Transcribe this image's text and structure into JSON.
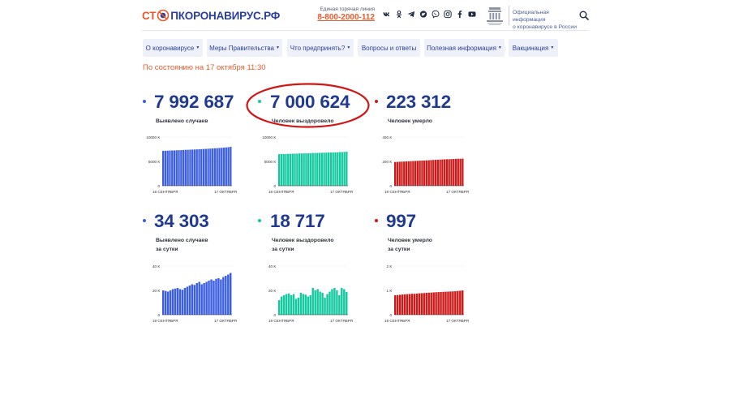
{
  "header": {
    "logo": {
      "part1": "СТ",
      "part2": "ПКОРОНАВИРУС.РФ"
    },
    "hotline_label": "Единая горячая линия",
    "hotline_number": "8-800-2000-112",
    "socials": [
      "vk-icon",
      "odnoklassniki-icon",
      "telegram-icon",
      "twitter-icon",
      "viber-icon",
      "instagram-icon",
      "facebook-icon",
      "youtube-icon"
    ],
    "official_line1": "Официальная информация",
    "official_line2": "о коронавирусе в России"
  },
  "nav": [
    {
      "label": "О коронавирусе"
    },
    {
      "label": "Меры Правительства"
    },
    {
      "label": "Что предпринять?"
    },
    {
      "label": "Вопросы и ответы"
    },
    {
      "label": "Полезная информация"
    },
    {
      "label": "Вакцинация"
    }
  ],
  "status_text": "По состоянию на 17 октября 11:30",
  "stats": [
    {
      "value": "7 992 687",
      "caption1": "Выявлено случаев",
      "caption2": ""
    },
    {
      "value": "7 000 624",
      "caption1": "Человек выздоровело",
      "caption2": ""
    },
    {
      "value": "223 312",
      "caption1": "Человек умерло",
      "caption2": ""
    },
    {
      "value": "34 303",
      "caption1": "Выявлено случаев",
      "caption2": "за сутки"
    },
    {
      "value": "18 717",
      "caption1": "Человек выздоровело",
      "caption2": "за сутки"
    },
    {
      "value": "997",
      "caption1": "Человек умерло",
      "caption2": "за сутки"
    }
  ],
  "colors": {
    "cases": "#3b5fe0",
    "recovered": "#12c9a0",
    "deaths": "#cc1a1a",
    "accent": "#e85a2c",
    "navy": "#1f3a8f"
  },
  "chart_data": [
    {
      "type": "bar",
      "name": "cases_total",
      "color": "#3b5fe0",
      "ticks": [
        "0",
        "5000 К",
        "10000 К"
      ],
      "ylim": [
        0,
        10000
      ],
      "xstart": "18 СЕНТЯБРЯ",
      "xend": "17 ОКТЯБРЯ",
      "values": [
        7170,
        7190,
        7210,
        7230,
        7250,
        7270,
        7290,
        7310,
        7330,
        7350,
        7370,
        7390,
        7410,
        7430,
        7450,
        7480,
        7500,
        7530,
        7550,
        7580,
        7610,
        7640,
        7670,
        7700,
        7730,
        7760,
        7800,
        7840,
        7880,
        7920,
        7993
      ]
    },
    {
      "type": "bar",
      "name": "recovered_total",
      "color": "#12c9a0",
      "ticks": [
        "0",
        "5000 К",
        "10000 К"
      ],
      "ylim": [
        0,
        10000
      ],
      "xstart": "18 СЕНТЯБРЯ",
      "xend": "17 ОКТЯБРЯ",
      "values": [
        6490,
        6505,
        6520,
        6535,
        6550,
        6565,
        6580,
        6595,
        6610,
        6625,
        6640,
        6655,
        6670,
        6685,
        6700,
        6715,
        6730,
        6745,
        6760,
        6775,
        6790,
        6805,
        6820,
        6835,
        6850,
        6870,
        6890,
        6910,
        6930,
        6960,
        7001
      ]
    },
    {
      "type": "bar",
      "name": "deaths_total",
      "color": "#cc1a1a",
      "ticks": [
        "0",
        "200 К",
        "400 К"
      ],
      "ylim": [
        0,
        400
      ],
      "xstart": "18 СЕНТЯБРЯ",
      "xend": "17 ОКТЯБРЯ",
      "values": [
        195,
        196,
        197,
        198,
        199,
        200,
        201,
        202,
        203,
        204,
        205,
        206,
        207,
        208,
        209,
        210,
        211,
        212,
        213,
        214,
        215,
        216,
        217,
        218,
        218,
        219,
        220,
        221,
        222,
        222,
        223
      ]
    },
    {
      "type": "bar",
      "name": "cases_daily",
      "color": "#3b5fe0",
      "ticks": [
        "0",
        "20 К",
        "40 К"
      ],
      "ylim": [
        0,
        40
      ],
      "xstart": "19 СЕНТЯБРЯ",
      "xend": "17 ОКТЯБРЯ",
      "values": [
        20,
        19.5,
        19,
        20,
        21,
        21.5,
        22,
        21,
        20.5,
        22,
        23,
        24,
        25,
        24.5,
        26,
        27,
        25,
        26,
        27,
        28,
        29,
        28,
        29.5,
        30,
        29,
        31,
        32,
        33,
        34.3
      ]
    },
    {
      "type": "bar",
      "name": "recovered_daily",
      "color": "#12c9a0",
      "ticks": [
        "0",
        "20 К",
        "40 К"
      ],
      "ylim": [
        0,
        40
      ],
      "xstart": "19 СЕНТЯБРЯ",
      "xend": "17 ОКТЯБРЯ",
      "values": [
        12,
        15,
        16,
        17,
        17.5,
        16,
        17,
        13,
        14,
        18,
        17,
        16.5,
        15,
        16,
        22,
        20,
        21,
        19,
        18,
        14,
        17,
        19,
        21,
        22,
        20,
        16,
        22,
        21,
        18.7
      ]
    },
    {
      "type": "bar",
      "name": "deaths_daily",
      "color": "#cc1a1a",
      "ticks": [
        "0",
        "1 К",
        "2 К"
      ],
      "ylim": [
        0,
        2000
      ],
      "xstart": "19 СЕНТЯБРЯ",
      "xend": "17 ОКТЯБРЯ",
      "values": [
        800,
        810,
        820,
        830,
        840,
        845,
        850,
        860,
        860,
        870,
        880,
        885,
        890,
        900,
        905,
        910,
        920,
        925,
        930,
        935,
        940,
        945,
        950,
        955,
        960,
        965,
        975,
        985,
        997
      ]
    }
  ]
}
